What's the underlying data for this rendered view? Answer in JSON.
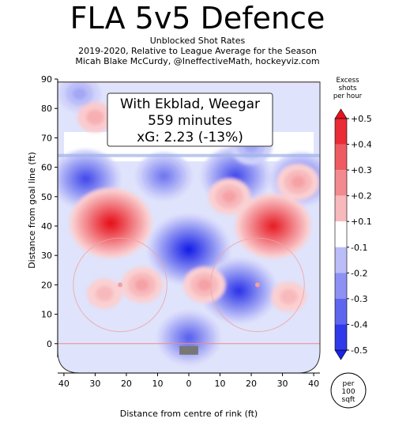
{
  "header": {
    "title": "FLA 5v5 Defence",
    "subtitle_1": "Unblocked Shot Rates",
    "subtitle_2": "2019-2020, Relative to League Average for the Season",
    "subtitle_3": "Micah Blake McCurdy, @IneffectiveMath, hockeyviz.com"
  },
  "annotation": {
    "line1": "With Ekblad, Weegar",
    "line2": "559 minutes",
    "line3": "xG: 2.23 (-13%)"
  },
  "badge": {
    "line1": "per",
    "line2": "100",
    "line3": "sqft"
  },
  "colors": {
    "positive": "#e8141a",
    "negative": "#1a22e6",
    "neutral": "#ffffff"
  },
  "chart_data": {
    "type": "heatmap",
    "xlabel": "Distance from centre of rink (ft)",
    "ylabel": "Distance from goal line (ft)",
    "xlim": [
      -42,
      42
    ],
    "ylim": [
      -10,
      90
    ],
    "x_ticks": [
      -40,
      -30,
      -20,
      -10,
      0,
      10,
      20,
      30,
      40
    ],
    "x_tick_labels": [
      "40",
      "30",
      "20",
      "10",
      "0",
      "10",
      "20",
      "30",
      "40"
    ],
    "y_ticks": [
      0,
      10,
      20,
      30,
      40,
      50,
      60,
      70,
      80,
      90
    ],
    "colorbar": {
      "title_lines": [
        "Excess",
        "shots",
        "per hour"
      ],
      "levels": [
        0.5,
        0.4,
        0.3,
        0.2,
        0.1,
        -0.1,
        -0.2,
        -0.3,
        -0.4,
        -0.5
      ],
      "labels": [
        "+0.5",
        "+0.4",
        "+0.3",
        "+0.2",
        "+0.1",
        "-0.1",
        "-0.2",
        "-0.3",
        "-0.4",
        "-0.5"
      ]
    },
    "hot_spots": [
      {
        "x": -25,
        "y": 41,
        "value": 0.45
      },
      {
        "x": 27,
        "y": 40,
        "value": 0.42
      },
      {
        "x": -15,
        "y": 20,
        "value": 0.15
      },
      {
        "x": 5,
        "y": 20,
        "value": 0.15
      },
      {
        "x": 32,
        "y": 16,
        "value": 0.1
      },
      {
        "x": -27,
        "y": 17,
        "value": 0.1
      },
      {
        "x": -5,
        "y": 73,
        "value": 0.12
      },
      {
        "x": -30,
        "y": 77,
        "value": 0.12
      },
      {
        "x": 20,
        "y": 76,
        "value": 0.1
      },
      {
        "x": 13,
        "y": 50,
        "value": 0.15
      },
      {
        "x": 35,
        "y": 55,
        "value": 0.15
      }
    ],
    "cold_spots": [
      {
        "x": 0,
        "y": 32,
        "value": -0.45
      },
      {
        "x": 16,
        "y": 18,
        "value": -0.4
      },
      {
        "x": -33,
        "y": 56,
        "value": -0.35
      },
      {
        "x": 15,
        "y": 57,
        "value": -0.35
      },
      {
        "x": 36,
        "y": 56,
        "value": -0.3
      },
      {
        "x": -8,
        "y": 57,
        "value": -0.25
      },
      {
        "x": 0,
        "y": 2,
        "value": -0.3
      },
      {
        "x": -35,
        "y": 85,
        "value": -0.15
      },
      {
        "x": 20,
        "y": 67,
        "value": -0.15
      }
    ]
  }
}
